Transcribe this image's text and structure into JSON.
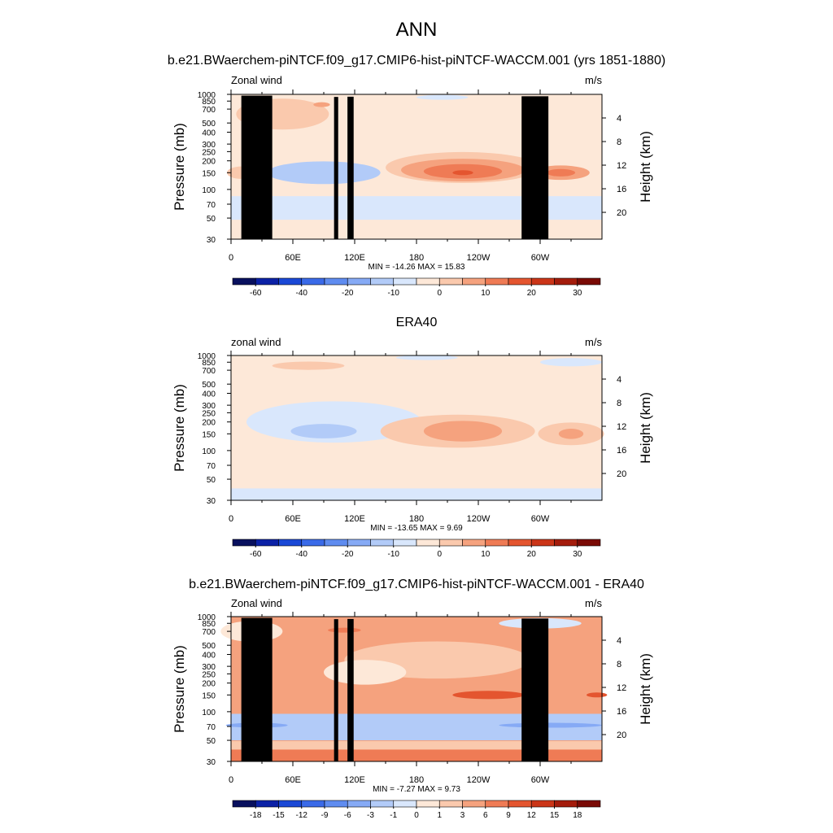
{
  "figure": {
    "title": "ANN",
    "colors": {
      "full_palette": [
        "#08105e",
        "#0b21a6",
        "#1a48d6",
        "#3a6ae8",
        "#5f8cf0",
        "#86aaf5",
        "#b2cbf8",
        "#d9e7fc",
        "#fde8d8",
        "#fac9ad",
        "#f5a27e",
        "#ef7b55",
        "#e4552f",
        "#cb3518",
        "#a41c0c",
        "#7a0a05"
      ],
      "diff_palette": [
        "#08105e",
        "#0b21a6",
        "#1a48d6",
        "#3a6ae8",
        "#5f8cf0",
        "#86aaf5",
        "#b2cbf8",
        "#d9e7fc",
        "#fde8d8",
        "#fac9ad",
        "#f5a27e",
        "#ef7b55",
        "#e4552f",
        "#cb3518",
        "#a41c0c",
        "#7a0a05"
      ],
      "topography": "#000000"
    }
  },
  "chart_data": [
    {
      "type": "heatmap",
      "title": "b.e21.BWaerchem-piNTCF.f09_g17.CMIP6-hist-piNTCF-WACCM.001 (yrs 1851-1880)",
      "variable_label": "Zonal wind",
      "units": "m/s",
      "ylabel": "Pressure (mb)",
      "ylabel_right": "Height (km)",
      "x_ticks": [
        "0",
        "60E",
        "120E",
        "180",
        "120W",
        "60W"
      ],
      "y_ticks": [
        "30",
        "50",
        "70",
        "100",
        "150",
        "200",
        "250",
        "300",
        "400",
        "500",
        "700",
        "850",
        "1000"
      ],
      "y_ticks_right": [
        "20",
        "16",
        "12",
        "8",
        "4"
      ],
      "min_max_text": "MIN = -14.26  MAX =  15.83",
      "colorbar_labels": [
        "-60",
        "-40",
        "-20",
        "-10",
        "0",
        "10",
        "20",
        "30"
      ],
      "min": -14.26,
      "max": 15.83,
      "x_range": [
        0,
        360
      ],
      "y_range_mb": [
        1000,
        30
      ]
    },
    {
      "type": "heatmap",
      "title": "ERA40",
      "variable_label": "zonal wind",
      "units": "m/s",
      "ylabel": "Pressure (mb)",
      "ylabel_right": "Height (km)",
      "x_ticks": [
        "0",
        "60E",
        "120E",
        "180",
        "120W",
        "60W"
      ],
      "y_ticks": [
        "30",
        "50",
        "70",
        "100",
        "150",
        "200",
        "250",
        "300",
        "400",
        "500",
        "700",
        "850",
        "1000"
      ],
      "y_ticks_right": [
        "20",
        "16",
        "12",
        "8",
        "4"
      ],
      "min_max_text": "MIN = -13.65  MAX =   9.69",
      "colorbar_labels": [
        "-60",
        "-40",
        "-20",
        "-10",
        "0",
        "10",
        "20",
        "30"
      ],
      "min": -13.65,
      "max": 9.69,
      "x_range": [
        0,
        360
      ],
      "y_range_mb": [
        1000,
        30
      ]
    },
    {
      "type": "heatmap",
      "title": "b.e21.BWaerchem-piNTCF.f09_g17.CMIP6-hist-piNTCF-WACCM.001 - ERA40",
      "variable_label": "Zonal wind",
      "units": "m/s",
      "ylabel": "Pressure (mb)",
      "ylabel_right": "Height (km)",
      "x_ticks": [
        "0",
        "60E",
        "120E",
        "180",
        "120W",
        "60W"
      ],
      "y_ticks": [
        "30",
        "50",
        "70",
        "100",
        "150",
        "200",
        "250",
        "300",
        "400",
        "500",
        "700",
        "850",
        "1000"
      ],
      "y_ticks_right": [
        "20",
        "16",
        "12",
        "8",
        "4"
      ],
      "min_max_text": "MIN =  -7.27  MAX =   9.73",
      "colorbar_labels": [
        "-18",
        "-15",
        "-12",
        "-9",
        "-6",
        "-3",
        "-1",
        "0",
        "1",
        "3",
        "6",
        "9",
        "12",
        "15",
        "18"
      ],
      "min": -7.27,
      "max": 9.73,
      "x_range": [
        0,
        360
      ],
      "y_range_mb": [
        1000,
        30
      ]
    }
  ]
}
